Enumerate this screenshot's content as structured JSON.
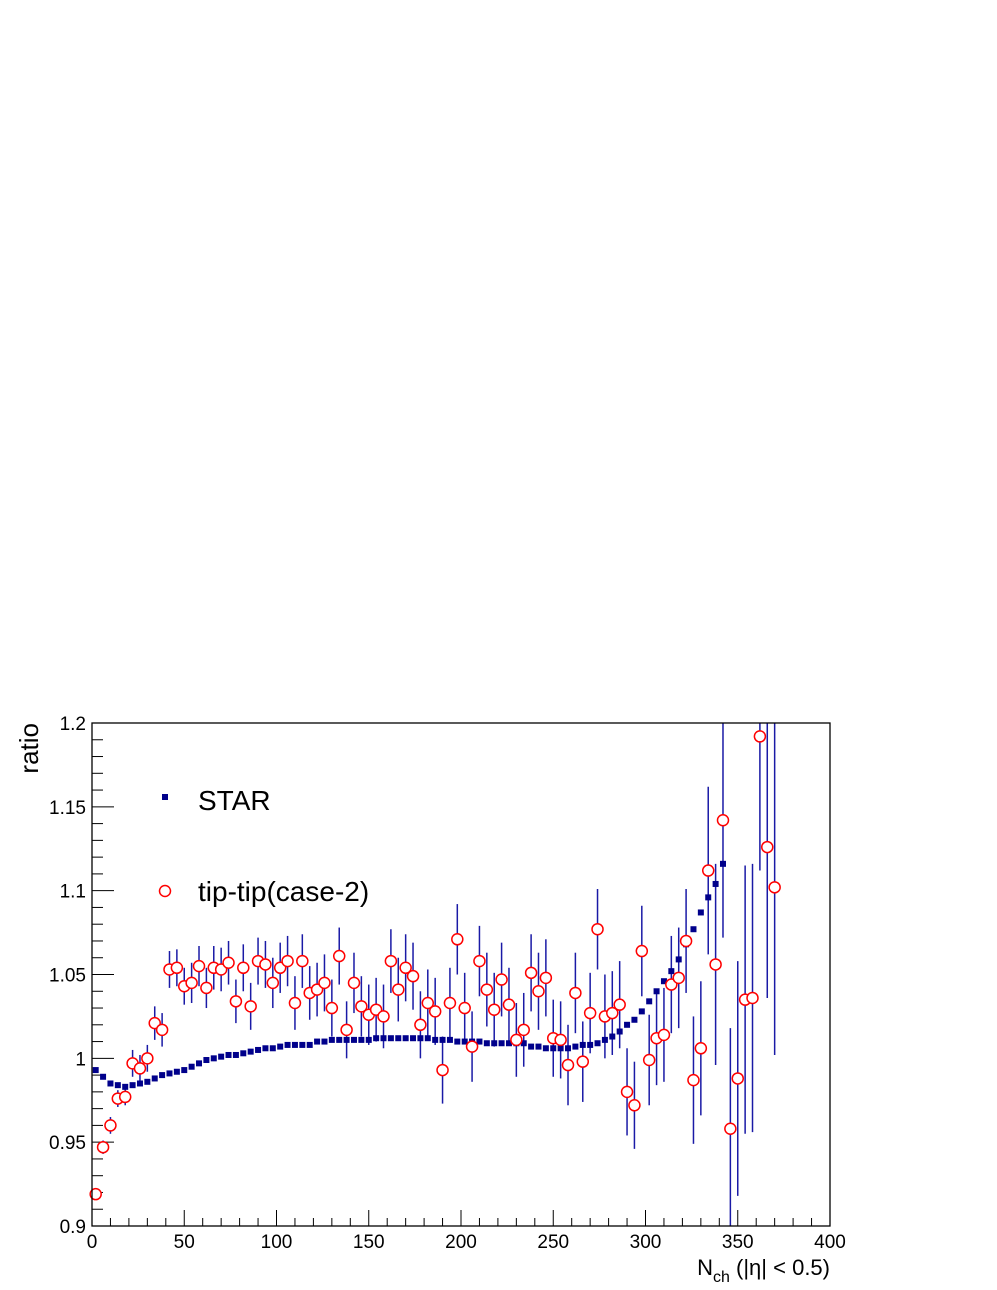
{
  "chart_data": {
    "type": "scatter",
    "xlabel": {
      "main": "N",
      "sub": "ch",
      "rest": " (|η| < 0.5)"
    },
    "ylabel": "ratio",
    "xlim": [
      0,
      400
    ],
    "ylim": [
      0.9,
      1.2
    ],
    "x_ticks": [
      0,
      50,
      100,
      150,
      200,
      250,
      300,
      350,
      400
    ],
    "x_tick_labels": [
      "0",
      "50",
      "100",
      "150",
      "200",
      "250",
      "300",
      "350",
      "400"
    ],
    "y_ticks": [
      0.9,
      0.95,
      1.0,
      1.05,
      1.1,
      1.15,
      1.2
    ],
    "y_tick_labels": [
      "0.9",
      "0.95",
      "1",
      "1.05",
      "1.1",
      "1.15",
      "1.2"
    ],
    "grid": false,
    "legend_position": "top-left",
    "colors": {
      "star": "#00008b",
      "tip": "#ff0000",
      "errbar": "#1a1aa6",
      "axis": "#000000"
    },
    "series": [
      {
        "name": "STAR",
        "marker": "square",
        "points": [
          [
            2,
            0.993
          ],
          [
            6,
            0.989
          ],
          [
            10,
            0.985
          ],
          [
            14,
            0.984
          ],
          [
            18,
            0.983
          ],
          [
            22,
            0.984
          ],
          [
            26,
            0.985
          ],
          [
            30,
            0.986
          ],
          [
            34,
            0.988
          ],
          [
            38,
            0.99
          ],
          [
            42,
            0.991
          ],
          [
            46,
            0.992
          ],
          [
            50,
            0.993
          ],
          [
            54,
            0.995
          ],
          [
            58,
            0.997
          ],
          [
            62,
            0.999
          ],
          [
            66,
            1.0
          ],
          [
            70,
            1.001
          ],
          [
            74,
            1.002
          ],
          [
            78,
            1.002
          ],
          [
            82,
            1.003
          ],
          [
            86,
            1.004
          ],
          [
            90,
            1.005
          ],
          [
            94,
            1.006
          ],
          [
            98,
            1.006
          ],
          [
            102,
            1.007
          ],
          [
            106,
            1.008
          ],
          [
            110,
            1.008
          ],
          [
            114,
            1.008
          ],
          [
            118,
            1.008
          ],
          [
            122,
            1.01
          ],
          [
            126,
            1.01
          ],
          [
            130,
            1.011
          ],
          [
            134,
            1.011
          ],
          [
            138,
            1.011
          ],
          [
            142,
            1.011
          ],
          [
            146,
            1.011
          ],
          [
            150,
            1.011
          ],
          [
            154,
            1.012
          ],
          [
            158,
            1.012
          ],
          [
            162,
            1.012
          ],
          [
            166,
            1.012
          ],
          [
            170,
            1.012
          ],
          [
            174,
            1.012
          ],
          [
            178,
            1.012
          ],
          [
            182,
            1.012
          ],
          [
            186,
            1.011
          ],
          [
            190,
            1.011
          ],
          [
            194,
            1.011
          ],
          [
            198,
            1.01
          ],
          [
            202,
            1.01
          ],
          [
            206,
            1.01
          ],
          [
            210,
            1.01
          ],
          [
            214,
            1.009
          ],
          [
            218,
            1.009
          ],
          [
            222,
            1.009
          ],
          [
            226,
            1.009
          ],
          [
            230,
            1.009
          ],
          [
            234,
            1.009
          ],
          [
            238,
            1.007
          ],
          [
            242,
            1.007
          ],
          [
            246,
            1.006
          ],
          [
            250,
            1.006
          ],
          [
            254,
            1.006
          ],
          [
            258,
            1.006
          ],
          [
            262,
            1.007
          ],
          [
            266,
            1.008
          ],
          [
            270,
            1.008
          ],
          [
            274,
            1.009
          ],
          [
            278,
            1.011
          ],
          [
            282,
            1.013
          ],
          [
            286,
            1.016
          ],
          [
            290,
            1.02
          ],
          [
            294,
            1.023
          ],
          [
            298,
            1.028
          ],
          [
            302,
            1.034
          ],
          [
            306,
            1.04
          ],
          [
            310,
            1.046
          ],
          [
            314,
            1.052
          ],
          [
            318,
            1.059
          ],
          [
            322,
            1.068
          ],
          [
            326,
            1.077
          ],
          [
            330,
            1.087
          ],
          [
            334,
            1.096
          ],
          [
            338,
            1.104
          ],
          [
            342,
            1.116
          ]
        ]
      },
      {
        "name": "tip-tip(case-2)",
        "marker": "open-circle",
        "points": [
          [
            2,
            0.919,
            0.0
          ],
          [
            6,
            0.947,
            0.004
          ],
          [
            10,
            0.96,
            0.005
          ],
          [
            14,
            0.976,
            0.005
          ],
          [
            18,
            0.977,
            0.005
          ],
          [
            22,
            0.997,
            0.008
          ],
          [
            26,
            0.994,
            0.008
          ],
          [
            30,
            1.0,
            0.008
          ],
          [
            34,
            1.021,
            0.01
          ],
          [
            38,
            1.017,
            0.01
          ],
          [
            42,
            1.053,
            0.011
          ],
          [
            46,
            1.054,
            0.011
          ],
          [
            50,
            1.043,
            0.011
          ],
          [
            54,
            1.045,
            0.012
          ],
          [
            58,
            1.055,
            0.012
          ],
          [
            62,
            1.042,
            0.012
          ],
          [
            66,
            1.054,
            0.013
          ],
          [
            70,
            1.053,
            0.013
          ],
          [
            74,
            1.057,
            0.013
          ],
          [
            78,
            1.034,
            0.013
          ],
          [
            82,
            1.054,
            0.014
          ],
          [
            86,
            1.031,
            0.014
          ],
          [
            90,
            1.058,
            0.014
          ],
          [
            94,
            1.056,
            0.014
          ],
          [
            98,
            1.045,
            0.015
          ],
          [
            102,
            1.054,
            0.015
          ],
          [
            106,
            1.058,
            0.015
          ],
          [
            110,
            1.033,
            0.016
          ],
          [
            114,
            1.058,
            0.016
          ],
          [
            118,
            1.039,
            0.016
          ],
          [
            122,
            1.041,
            0.016
          ],
          [
            126,
            1.045,
            0.017
          ],
          [
            130,
            1.03,
            0.017
          ],
          [
            134,
            1.061,
            0.017
          ],
          [
            138,
            1.017,
            0.017
          ],
          [
            142,
            1.045,
            0.018
          ],
          [
            146,
            1.031,
            0.018
          ],
          [
            150,
            1.026,
            0.018
          ],
          [
            154,
            1.029,
            0.019
          ],
          [
            158,
            1.025,
            0.019
          ],
          [
            162,
            1.058,
            0.019
          ],
          [
            166,
            1.041,
            0.019
          ],
          [
            170,
            1.054,
            0.02
          ],
          [
            174,
            1.049,
            0.02
          ],
          [
            178,
            1.02,
            0.02
          ],
          [
            182,
            1.033,
            0.02
          ],
          [
            186,
            1.028,
            0.02
          ],
          [
            190,
            0.993,
            0.02
          ],
          [
            194,
            1.033,
            0.021
          ],
          [
            198,
            1.071,
            0.021
          ],
          [
            202,
            1.03,
            0.021
          ],
          [
            206,
            1.007,
            0.021
          ],
          [
            210,
            1.058,
            0.021
          ],
          [
            214,
            1.041,
            0.022
          ],
          [
            218,
            1.029,
            0.022
          ],
          [
            222,
            1.047,
            0.022
          ],
          [
            226,
            1.032,
            0.022
          ],
          [
            230,
            1.011,
            0.022
          ],
          [
            234,
            1.017,
            0.022
          ],
          [
            238,
            1.051,
            0.023
          ],
          [
            242,
            1.04,
            0.023
          ],
          [
            246,
            1.048,
            0.023
          ],
          [
            250,
            1.012,
            0.023
          ],
          [
            254,
            1.011,
            0.023
          ],
          [
            258,
            0.996,
            0.024
          ],
          [
            262,
            1.039,
            0.024
          ],
          [
            266,
            0.998,
            0.024
          ],
          [
            270,
            1.027,
            0.024
          ],
          [
            274,
            1.077,
            0.024
          ],
          [
            278,
            1.025,
            0.025
          ],
          [
            282,
            1.027,
            0.025
          ],
          [
            286,
            1.032,
            0.026
          ],
          [
            290,
            0.98,
            0.026
          ],
          [
            294,
            0.972,
            0.026
          ],
          [
            298,
            1.064,
            0.027
          ],
          [
            302,
            0.999,
            0.027
          ],
          [
            306,
            1.012,
            0.028
          ],
          [
            310,
            1.014,
            0.028
          ],
          [
            314,
            1.044,
            0.029
          ],
          [
            318,
            1.048,
            0.03
          ],
          [
            322,
            1.07,
            0.031
          ],
          [
            326,
            0.987,
            0.038
          ],
          [
            330,
            1.006,
            0.04
          ],
          [
            334,
            1.112,
            0.05
          ],
          [
            338,
            1.056,
            0.06
          ],
          [
            342,
            1.142,
            0.07
          ],
          [
            346,
            0.958,
            0.06
          ],
          [
            350,
            0.988,
            0.07
          ],
          [
            354,
            1.035,
            0.08
          ],
          [
            358,
            1.036,
            0.08
          ],
          [
            362,
            1.192,
            0.08
          ],
          [
            366,
            1.126,
            0.09
          ],
          [
            370,
            1.102,
            0.1
          ]
        ]
      }
    ]
  }
}
